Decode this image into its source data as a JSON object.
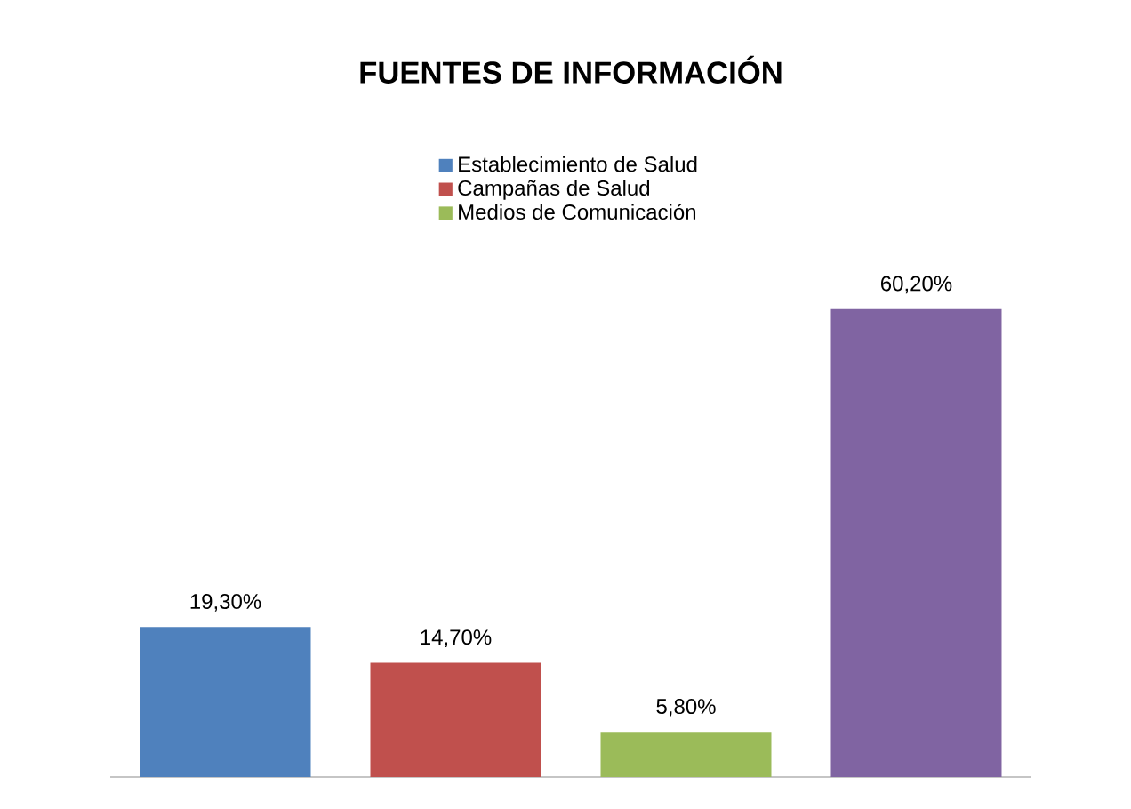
{
  "chart_data": {
    "type": "bar",
    "title": "FUENTES DE INFORMACIÓN",
    "categories": [
      null,
      null,
      null,
      null
    ],
    "stacked": true,
    "series": [
      {
        "name": "Establecimiento de Salud",
        "color": "#4f81bd",
        "values": [
          19.3,
          null,
          null,
          null
        ],
        "value_labels": [
          "19,30%",
          null,
          null,
          null
        ]
      },
      {
        "name": "Campañas de Salud",
        "color": "#c0504d",
        "values": [
          null,
          14.7,
          null,
          null
        ],
        "value_labels": [
          null,
          "14,70%",
          null,
          null
        ]
      },
      {
        "name": "Medios de Comunicación",
        "color": "#9bbb59",
        "values": [
          null,
          null,
          5.8,
          null
        ],
        "value_labels": [
          null,
          null,
          "5,80%",
          null
        ]
      },
      {
        "color": "#8064a2",
        "values": [
          null,
          null,
          null,
          60.2
        ],
        "value_labels": [
          null,
          null,
          null,
          "60,20%"
        ]
      }
    ],
    "legend": "top"
  }
}
